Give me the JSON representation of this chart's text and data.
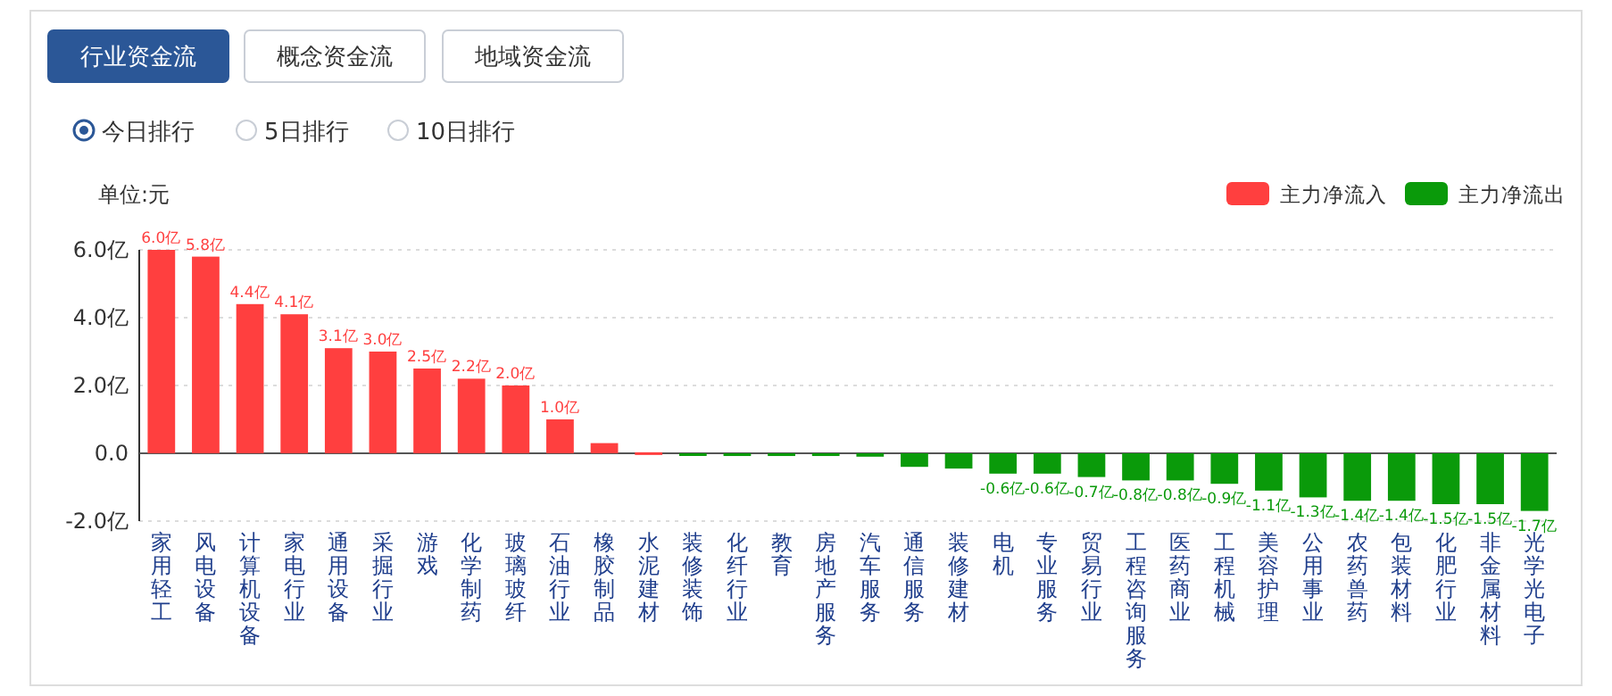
{
  "chart_data": {
    "type": "bar",
    "ylabel": "单位:元",
    "annotations": [
      "行业资金流",
      "概念资金流",
      "地域资金流",
      "今日排行",
      "5日排行",
      "10日排行"
    ],
    "categories": [
      "家用轻工",
      "风电设备",
      "计算机设备",
      "家电行业",
      "通用设备",
      "采掘行业",
      "游戏",
      "化学制药",
      "玻璃玻纤",
      "石油行业",
      "橡胶制品",
      "水泥建材",
      "装修装饰",
      "化纤行业",
      "教育",
      "房地产服务",
      "汽车服务",
      "通信服务",
      "装修建材",
      "电机",
      "专业服务",
      "贸易行业",
      "工程咨询服务",
      "医药商业",
      "工程机械",
      "美容护理",
      "公用事业",
      "农药兽药",
      "包装材料",
      "化肥行业",
      "非金属材料",
      "光学光电子"
    ],
    "series": [
      {
        "name": "主力净流入",
        "color": "#ff3f3f",
        "values": [
          6.0,
          5.8,
          4.4,
          4.1,
          3.1,
          3.0,
          2.5,
          2.2,
          2.0,
          1.0,
          0.3,
          0.03,
          null,
          null,
          null,
          null,
          null,
          null,
          null,
          null,
          null,
          null,
          null,
          null,
          null,
          null,
          null,
          null,
          null,
          null,
          null,
          null
        ],
        "value_labels": [
          "6.0亿",
          "5.8亿",
          "4.4亿",
          "4.1亿",
          "3.1亿",
          "3.0亿",
          "2.5亿",
          "2.2亿",
          "2.0亿",
          "1.0亿",
          null,
          null,
          null,
          null,
          null,
          null,
          null,
          null,
          null,
          null,
          null,
          null,
          null,
          null,
          null,
          null,
          null,
          null,
          null,
          null,
          null,
          null
        ]
      },
      {
        "name": "主力净流出",
        "color": "#0a9a0a",
        "values": [
          null,
          null,
          null,
          null,
          null,
          null,
          null,
          null,
          null,
          null,
          null,
          null,
          -0.05,
          -0.08,
          -0.08,
          -0.08,
          -0.1,
          -0.4,
          -0.45,
          -0.6,
          -0.6,
          -0.7,
          -0.8,
          -0.8,
          -0.9,
          -1.1,
          -1.3,
          -1.4,
          -1.4,
          -1.5,
          -1.5,
          -1.7
        ],
        "value_labels": [
          null,
          null,
          null,
          null,
          null,
          null,
          null,
          null,
          null,
          null,
          null,
          null,
          null,
          null,
          null,
          null,
          null,
          null,
          null,
          "-0.6亿",
          "-0.6亿",
          "-0.7亿",
          "-0.8亿",
          "-0.8亿",
          "-0.9亿",
          "-1.1亿",
          "-1.3亿",
          "-1.4亿",
          "-1.4亿",
          "-1.5亿",
          "-1.5亿",
          "-1.7亿"
        ]
      }
    ],
    "ylim": [
      -2,
      6
    ],
    "yticks": [
      {
        "value": 6,
        "label": "6.0亿"
      },
      {
        "value": 4,
        "label": "4.0亿"
      },
      {
        "value": 2,
        "label": "2.0亿"
      },
      {
        "value": 0,
        "label": "0.0"
      },
      {
        "value": -2,
        "label": "-2.0亿"
      }
    ],
    "grid": "y",
    "legend": "top right"
  }
}
